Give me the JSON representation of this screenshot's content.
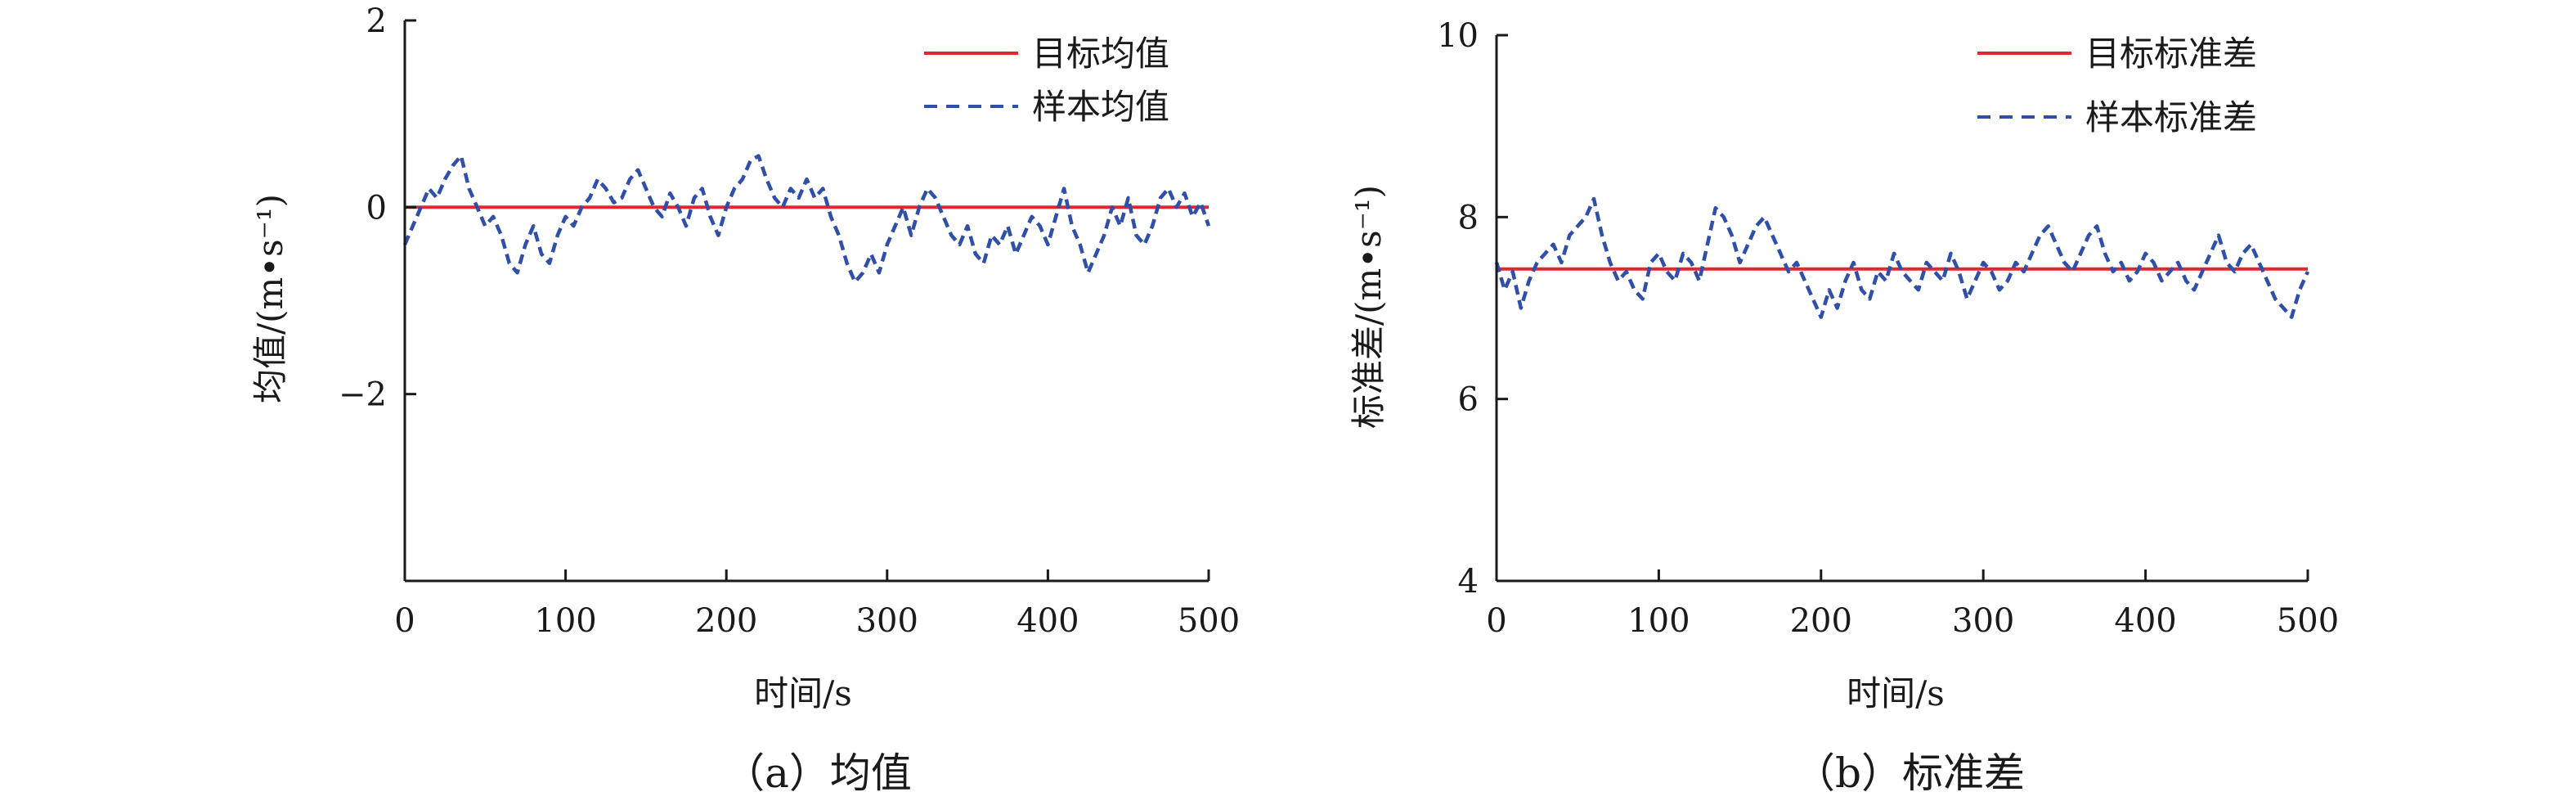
{
  "chart_data": [
    {
      "type": "line",
      "panel_label": "（a）均值",
      "xlabel": "时间/s",
      "ylabel": "均值/(m•s⁻¹)",
      "xlim": [
        0,
        500
      ],
      "ylim": [
        -4,
        2
      ],
      "x_ticks": [
        0,
        100,
        200,
        300,
        400,
        500
      ],
      "x_tick_labels": [
        "0",
        "100",
        "200",
        "300",
        "400",
        "500"
      ],
      "y_ticks": [
        -2,
        0,
        2
      ],
      "y_tick_labels": [
        "−2",
        "0",
        "2"
      ],
      "legend": [
        "目标均值",
        "样本均值"
      ],
      "colors": {
        "target": "#e0282e",
        "sample": "#2f4fa8"
      },
      "series": [
        {
          "name": "目标均值",
          "style": "solid",
          "x": [
            0,
            500
          ],
          "values": [
            0,
            0
          ]
        },
        {
          "name": "样本均值",
          "style": "dashed",
          "x": [
            0,
            5,
            10,
            15,
            20,
            25,
            30,
            35,
            40,
            45,
            50,
            55,
            60,
            65,
            70,
            75,
            80,
            85,
            90,
            95,
            100,
            105,
            110,
            115,
            120,
            125,
            130,
            135,
            140,
            145,
            150,
            155,
            160,
            165,
            170,
            175,
            180,
            185,
            190,
            195,
            200,
            205,
            210,
            215,
            220,
            225,
            230,
            235,
            240,
            245,
            250,
            255,
            260,
            265,
            270,
            275,
            280,
            285,
            290,
            295,
            300,
            305,
            310,
            315,
            320,
            325,
            330,
            335,
            340,
            345,
            350,
            355,
            360,
            365,
            370,
            375,
            380,
            385,
            390,
            395,
            400,
            405,
            410,
            415,
            420,
            425,
            430,
            435,
            440,
            445,
            450,
            455,
            460,
            465,
            470,
            475,
            480,
            485,
            490,
            495,
            500
          ],
          "values": [
            -0.4,
            -0.2,
            0.0,
            0.2,
            0.1,
            0.3,
            0.45,
            0.55,
            0.2,
            0.0,
            -0.2,
            -0.1,
            -0.3,
            -0.6,
            -0.7,
            -0.4,
            -0.2,
            -0.5,
            -0.6,
            -0.3,
            -0.1,
            -0.2,
            0.0,
            0.1,
            0.3,
            0.2,
            0.05,
            0.1,
            0.3,
            0.4,
            0.2,
            0.0,
            -0.1,
            0.15,
            0.0,
            -0.2,
            0.1,
            0.2,
            -0.1,
            -0.3,
            0.0,
            0.2,
            0.3,
            0.5,
            0.55,
            0.3,
            0.1,
            0.0,
            0.2,
            0.1,
            0.3,
            0.1,
            0.2,
            -0.1,
            -0.3,
            -0.6,
            -0.8,
            -0.7,
            -0.5,
            -0.7,
            -0.4,
            -0.2,
            0.0,
            -0.3,
            0.0,
            0.2,
            0.1,
            -0.1,
            -0.3,
            -0.4,
            -0.2,
            -0.5,
            -0.6,
            -0.3,
            -0.4,
            -0.2,
            -0.5,
            -0.3,
            -0.1,
            -0.2,
            -0.4,
            -0.1,
            0.2,
            -0.2,
            -0.4,
            -0.7,
            -0.5,
            -0.3,
            0.0,
            -0.2,
            0.1,
            -0.3,
            -0.4,
            -0.2,
            0.1,
            0.2,
            0.0,
            0.15,
            -0.1,
            0.05,
            -0.2
          ]
        }
      ]
    },
    {
      "type": "line",
      "panel_label": "（b）标准差",
      "xlabel": "时间/s",
      "ylabel": "标准差/(m•s⁻¹)",
      "xlim": [
        0,
        500
      ],
      "ylim": [
        4,
        10
      ],
      "x_ticks": [
        0,
        100,
        200,
        300,
        400,
        500
      ],
      "x_tick_labels": [
        "0",
        "100",
        "200",
        "300",
        "400",
        "500"
      ],
      "y_ticks": [
        4,
        6,
        8,
        10
      ],
      "y_tick_labels": [
        "4",
        "6",
        "8",
        "10"
      ],
      "legend": [
        "目标标准差",
        "样本标准差"
      ],
      "colors": {
        "target": "#e0282e",
        "sample": "#2f4fa8"
      },
      "series": [
        {
          "name": "目标标准差",
          "style": "solid",
          "x": [
            0,
            500
          ],
          "values": [
            7.43,
            7.43
          ]
        },
        {
          "name": "样本标准差",
          "style": "dashed",
          "x": [
            0,
            5,
            10,
            15,
            20,
            25,
            30,
            35,
            40,
            45,
            50,
            55,
            60,
            65,
            70,
            75,
            80,
            85,
            90,
            95,
            100,
            105,
            110,
            115,
            120,
            125,
            130,
            135,
            140,
            145,
            150,
            155,
            160,
            165,
            170,
            175,
            180,
            185,
            190,
            195,
            200,
            205,
            210,
            215,
            220,
            225,
            230,
            235,
            240,
            245,
            250,
            255,
            260,
            265,
            270,
            275,
            280,
            285,
            290,
            295,
            300,
            305,
            310,
            315,
            320,
            325,
            330,
            335,
            340,
            345,
            350,
            355,
            360,
            365,
            370,
            375,
            380,
            385,
            390,
            395,
            400,
            405,
            410,
            415,
            420,
            425,
            430,
            435,
            440,
            445,
            450,
            455,
            460,
            465,
            470,
            475,
            480,
            485,
            490,
            495,
            500
          ],
          "values": [
            7.5,
            7.2,
            7.4,
            7.0,
            7.3,
            7.5,
            7.6,
            7.7,
            7.5,
            7.8,
            7.9,
            8.0,
            8.2,
            7.8,
            7.5,
            7.3,
            7.4,
            7.2,
            7.1,
            7.5,
            7.6,
            7.4,
            7.3,
            7.6,
            7.5,
            7.3,
            7.7,
            8.1,
            8.0,
            7.8,
            7.5,
            7.7,
            7.9,
            8.0,
            7.8,
            7.6,
            7.4,
            7.5,
            7.3,
            7.1,
            6.9,
            7.2,
            7.0,
            7.3,
            7.5,
            7.2,
            7.1,
            7.4,
            7.3,
            7.6,
            7.4,
            7.3,
            7.2,
            7.5,
            7.4,
            7.3,
            7.6,
            7.4,
            7.1,
            7.3,
            7.5,
            7.4,
            7.2,
            7.3,
            7.5,
            7.4,
            7.6,
            7.8,
            7.9,
            7.7,
            7.5,
            7.4,
            7.6,
            7.8,
            7.9,
            7.6,
            7.4,
            7.5,
            7.3,
            7.4,
            7.6,
            7.5,
            7.3,
            7.4,
            7.5,
            7.3,
            7.2,
            7.4,
            7.6,
            7.8,
            7.5,
            7.4,
            7.6,
            7.7,
            7.5,
            7.3,
            7.1,
            7.0,
            6.9,
            7.2,
            7.4
          ]
        }
      ]
    }
  ]
}
